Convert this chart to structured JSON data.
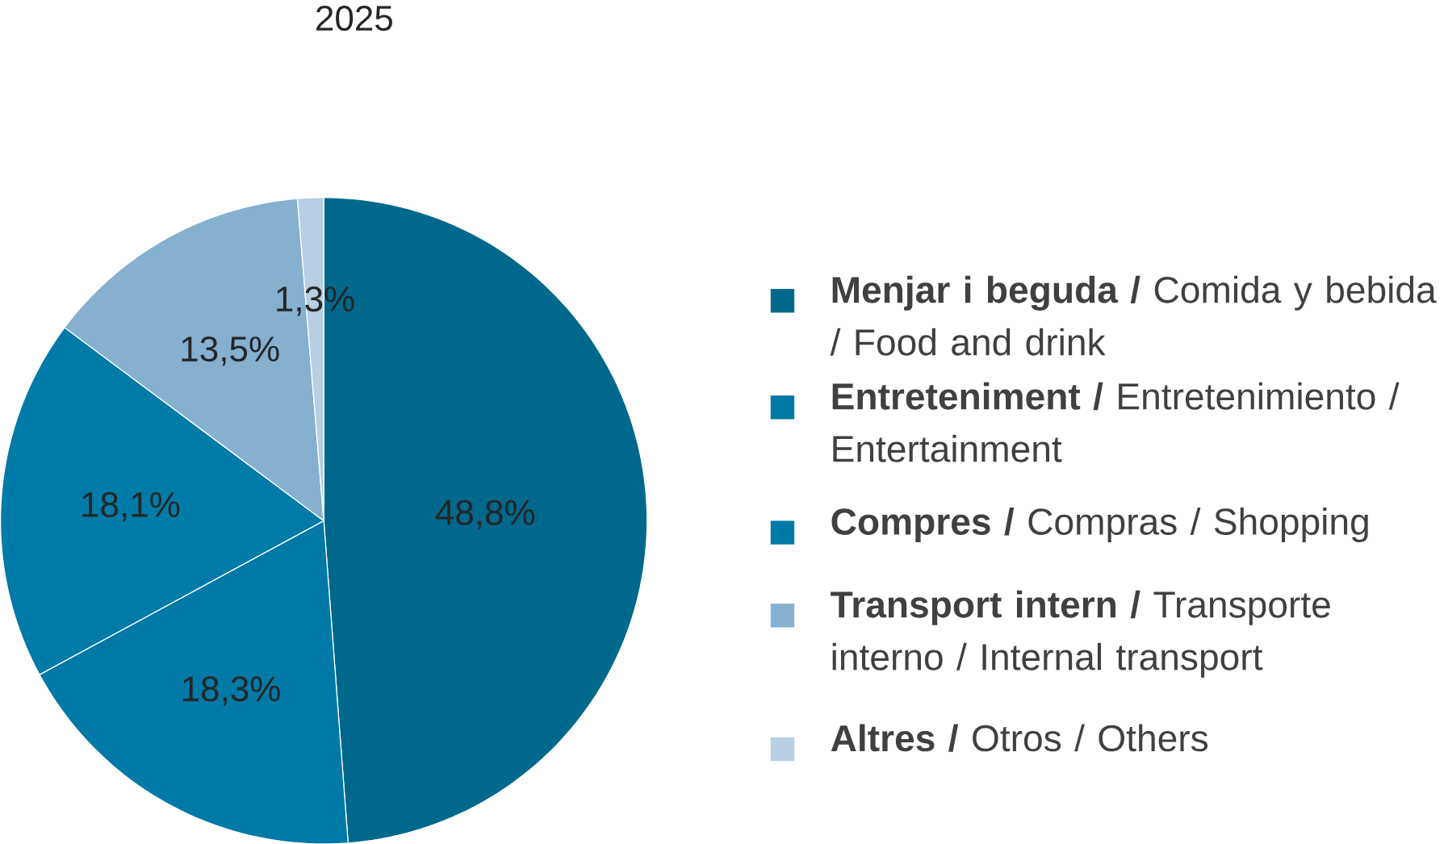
{
  "chart_data": {
    "type": "pie",
    "title": "2025",
    "categories": [
      "**Menjar i beguda /** Comida y bebida / Food and drink",
      "**Entreteniment /** Entretenimiento / Entertainment",
      "**Compres /** Compras / Shopping",
      "**Transport intern /** Transporte interno / Internal transport",
      "**Altres /** Otros / Others"
    ],
    "values": [
      48.8,
      18.3,
      18.1,
      13.5,
      1.3
    ],
    "value_labels": [
      "48,8%",
      "18,3%",
      "18,1%",
      "13,5%",
      "1,3%"
    ],
    "colors": [
      "#00688c",
      "#0079a6",
      "#007ba8",
      "#85b0d0",
      "#b7cee3"
    ],
    "legend": "right"
  }
}
